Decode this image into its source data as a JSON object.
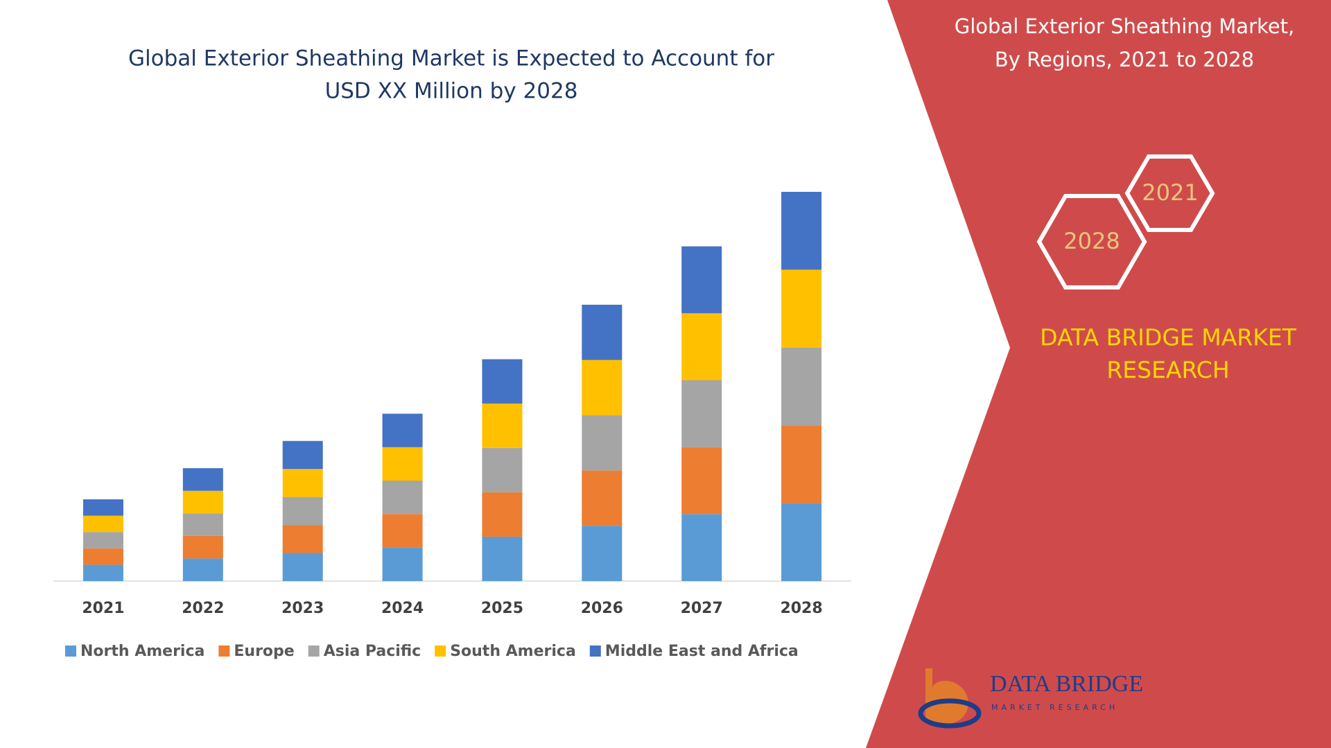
{
  "chart_data": {
    "type": "stacked_bar",
    "title": [
      "Global Exterior Sheathing Market is Expected to Account for",
      "USD XX Million by 2028"
    ],
    "categories": [
      "2021",
      "2022",
      "2023",
      "2024",
      "2025",
      "2026",
      "2027",
      "2028"
    ],
    "series": [
      {
        "name": "North America",
        "color": "#5b9bd5",
        "values": [
          2.1,
          2.9,
          3.6,
          4.3,
          5.7,
          7.1,
          8.6,
          10
        ]
      },
      {
        "name": "Europe",
        "color": "#ed7d31",
        "values": [
          2.1,
          2.9,
          3.6,
          4.3,
          5.7,
          7.1,
          8.6,
          10
        ]
      },
      {
        "name": "Asia Pacific",
        "color": "#a5a5a5",
        "values": [
          2.1,
          2.9,
          3.6,
          4.3,
          5.7,
          7.1,
          8.6,
          10
        ]
      },
      {
        "name": "South America",
        "color": "#ffc000",
        "values": [
          2.1,
          2.9,
          3.6,
          4.3,
          5.7,
          7.1,
          8.6,
          10
        ]
      },
      {
        "name": "Middle East and Africa",
        "color": "#4472c4",
        "values": [
          2.1,
          2.9,
          3.6,
          4.3,
          5.7,
          7.1,
          8.6,
          10
        ]
      }
    ],
    "ylim": [
      0,
      50
    ],
    "legend": "bottom"
  },
  "side_panel": {
    "title": [
      "Global Exterior Sheathing Market,",
      "By Regions, 2021 to 2028"
    ],
    "hexagons": [
      "2028",
      "2021"
    ],
    "brand": [
      "DATA BRIDGE MARKET",
      "RESEARCH"
    ]
  },
  "logo": {
    "name": "DATA BRIDGE",
    "tagline": "MARKET RESEARCH"
  }
}
